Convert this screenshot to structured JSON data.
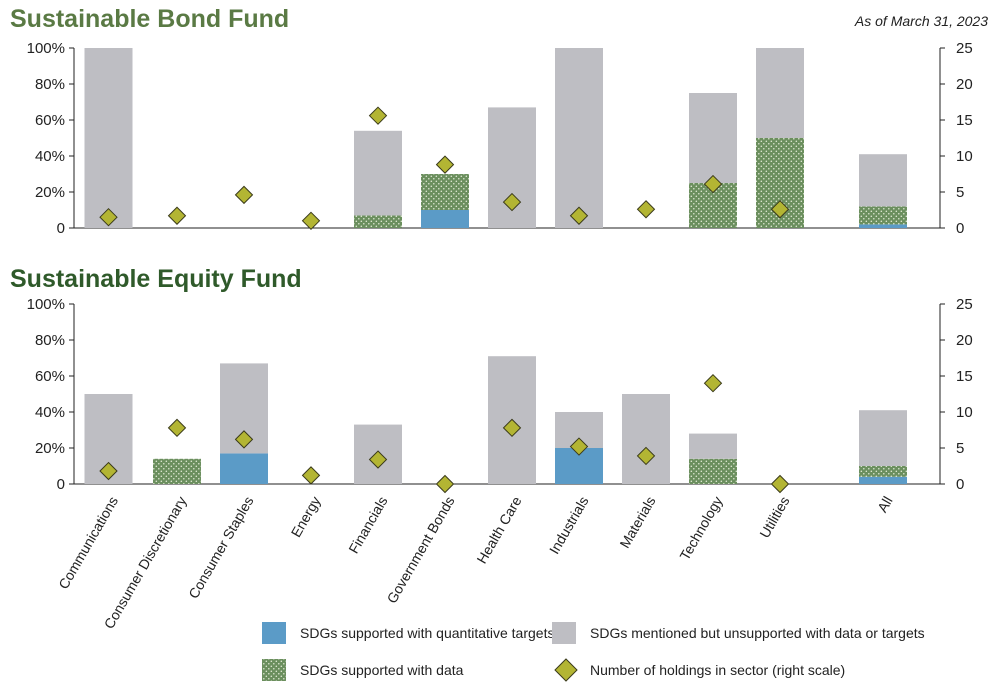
{
  "as_of": "As of March 31, 2023",
  "colors": {
    "quantitative": "#5b9bc7",
    "data": "#6b8f5e",
    "mentioned": "#bebec3",
    "holdings": "#b3b533",
    "bond_title": "#5a7a44",
    "equity_title": "#2f5a2a"
  },
  "legend": [
    {
      "key": "quantitative",
      "label": "SDGs supported with quantitative targets"
    },
    {
      "key": "mentioned",
      "label": "SDGs mentioned but unsupported with data or targets"
    },
    {
      "key": "data",
      "label": "SDGs supported with data"
    },
    {
      "key": "holdings",
      "label": "Number of holdings in sector (right scale)"
    }
  ],
  "chart_data": [
    {
      "type": "bar",
      "title": "Sustainable Bond Fund",
      "categories": [
        "Communications",
        "Consumer Discretionary",
        "Consumer Staples",
        "Energy",
        "Financials",
        "Government Bonds",
        "Health Care",
        "Industrials",
        "Materials",
        "Technology",
        "Utilities",
        "All"
      ],
      "left_axis": {
        "ylim": [
          0,
          100
        ],
        "ticks": [
          "0",
          "20%",
          "40%",
          "60%",
          "80%",
          "100%"
        ]
      },
      "right_axis": {
        "ylim": [
          0,
          25
        ],
        "ticks": [
          "0",
          "5",
          "10",
          "15",
          "20",
          "25"
        ]
      },
      "stacked": true,
      "series": [
        {
          "name": "SDGs supported with quantitative targets",
          "key": "quantitative",
          "values": [
            0,
            0,
            0,
            0,
            0,
            10,
            0,
            0,
            0,
            0,
            0,
            2
          ]
        },
        {
          "name": "SDGs supported with data",
          "key": "data",
          "values": [
            0,
            0,
            0,
            0,
            7,
            20,
            0,
            0,
            0,
            25,
            50,
            10
          ]
        },
        {
          "name": "SDGs mentioned but unsupported with data or targets",
          "key": "mentioned",
          "values": [
            100,
            0,
            0,
            0,
            47,
            0,
            67,
            100,
            0,
            50,
            50,
            29
          ]
        }
      ],
      "holdings": {
        "name": "Number of holdings in sector (right scale)",
        "values": [
          1.5,
          1.7,
          4.6,
          1,
          15.6,
          8.8,
          3.6,
          1.7,
          2.6,
          6.1,
          2.6,
          null
        ]
      }
    },
    {
      "type": "bar",
      "title": "Sustainable Equity Fund",
      "categories": [
        "Communications",
        "Consumer Discretionary",
        "Consumer Staples",
        "Energy",
        "Financials",
        "Government Bonds",
        "Health Care",
        "Industrials",
        "Materials",
        "Technology",
        "Utilities",
        "All"
      ],
      "left_axis": {
        "ylim": [
          0,
          100
        ],
        "ticks": [
          "0",
          "20%",
          "40%",
          "60%",
          "80%",
          "100%"
        ]
      },
      "right_axis": {
        "ylim": [
          0,
          25
        ],
        "ticks": [
          "0",
          "5",
          "10",
          "15",
          "20",
          "25"
        ]
      },
      "stacked": true,
      "series": [
        {
          "name": "SDGs supported with quantitative targets",
          "key": "quantitative",
          "values": [
            0,
            0,
            17,
            0,
            0,
            0,
            0,
            20,
            0,
            0,
            0,
            4
          ]
        },
        {
          "name": "SDGs supported with data",
          "key": "data",
          "values": [
            0,
            14,
            0,
            0,
            0,
            0,
            0,
            0,
            0,
            14,
            0,
            6
          ]
        },
        {
          "name": "SDGs mentioned but unsupported with data or targets",
          "key": "mentioned",
          "values": [
            50,
            0,
            50,
            0,
            33,
            0,
            71,
            20,
            50,
            14,
            0,
            31
          ]
        }
      ],
      "holdings": {
        "name": "Number of holdings in sector (right scale)",
        "values": [
          1.8,
          7.8,
          6.2,
          1.2,
          3.4,
          0,
          7.8,
          5.2,
          3.9,
          14,
          0,
          null
        ]
      }
    }
  ]
}
